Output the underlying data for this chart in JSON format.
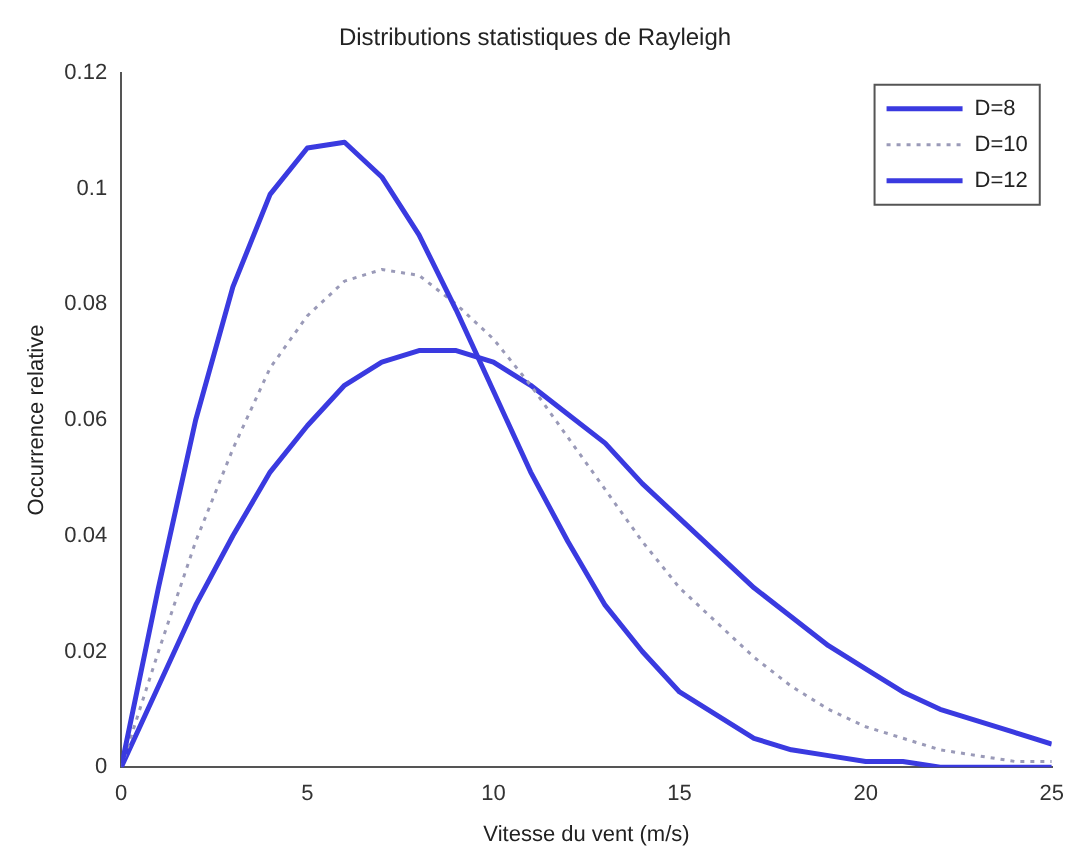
{
  "chart_data": {
    "type": "line",
    "title": "Distributions statistiques de Rayleigh",
    "xlabel": "Vitesse du vent (m/s)",
    "ylabel": "Occurrence relative",
    "x": [
      0,
      1,
      2,
      3,
      4,
      5,
      6,
      7,
      8,
      9,
      10,
      11,
      12,
      13,
      14,
      15,
      16,
      17,
      18,
      19,
      20,
      21,
      22,
      23,
      24,
      25
    ],
    "series": [
      {
        "name": "D=8",
        "color": "#3a3ae0",
        "line_style": "solid",
        "values": [
          0,
          0.031,
          0.06,
          0.083,
          0.099,
          0.107,
          0.108,
          0.102,
          0.092,
          0.079,
          0.065,
          0.051,
          0.039,
          0.028,
          0.02,
          0.013,
          0.009,
          0.005,
          0.003,
          0.002,
          0.001,
          0.001,
          0,
          0,
          0,
          0
        ]
      },
      {
        "name": "D=10",
        "color": "#9a9ab8",
        "line_style": "dotted",
        "values": [
          0,
          0.02,
          0.039,
          0.055,
          0.069,
          0.078,
          0.084,
          0.086,
          0.085,
          0.08,
          0.074,
          0.066,
          0.057,
          0.048,
          0.039,
          0.031,
          0.025,
          0.019,
          0.014,
          0.01,
          0.007,
          0.005,
          0.003,
          0.002,
          0.001,
          0.001
        ]
      },
      {
        "name": "D=12",
        "color": "#3a3ae0",
        "line_style": "solid",
        "values": [
          0,
          0.014,
          0.028,
          0.04,
          0.051,
          0.059,
          0.066,
          0.07,
          0.072,
          0.072,
          0.07,
          0.066,
          0.061,
          0.056,
          0.049,
          0.043,
          0.037,
          0.031,
          0.026,
          0.021,
          0.017,
          0.013,
          0.01,
          0.008,
          0.006,
          0.004
        ]
      }
    ],
    "xlim": [
      0,
      25
    ],
    "xticks": [
      0,
      5,
      10,
      15,
      20,
      25
    ],
    "ylim": [
      0,
      0.12
    ],
    "yticks": [
      0,
      0.02,
      0.04,
      0.06,
      0.08,
      0.1,
      0.12
    ],
    "grid": false,
    "legend": "top right",
    "marker": "none"
  }
}
